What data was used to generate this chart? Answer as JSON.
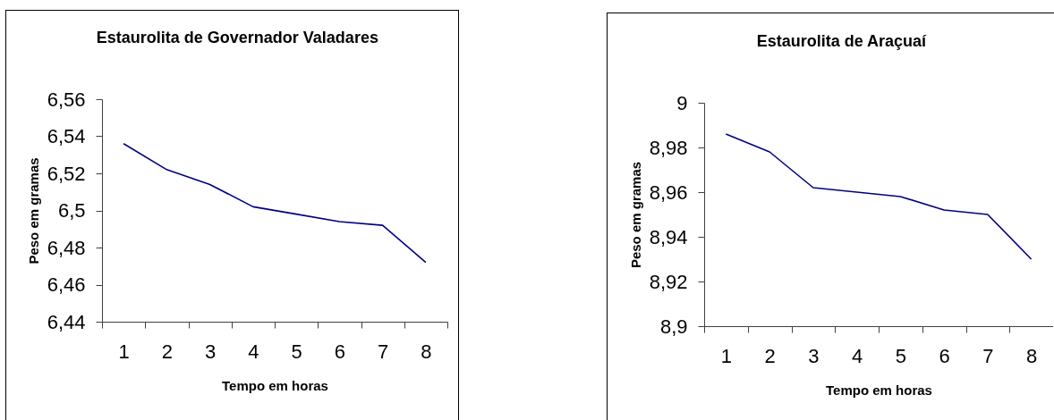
{
  "chart_data": [
    {
      "type": "line",
      "title": "Estaurolita de Governador Valadares",
      "xlabel": "Tempo em horas",
      "ylabel": "Peso em gramas",
      "categories": [
        "1",
        "2",
        "3",
        "4",
        "5",
        "6",
        "7",
        "8"
      ],
      "series": [
        {
          "color": "#000080",
          "values": [
            6.536,
            6.522,
            6.514,
            6.502,
            6.498,
            6.494,
            6.492,
            6.472
          ]
        }
      ],
      "ylim": [
        6.44,
        6.56
      ],
      "yticks": [
        {
          "value": 6.44,
          "label": "6,44"
        },
        {
          "value": 6.46,
          "label": "6,46"
        },
        {
          "value": 6.48,
          "label": "6,48"
        },
        {
          "value": 6.5,
          "label": "6,5"
        },
        {
          "value": 6.52,
          "label": "6,52"
        },
        {
          "value": 6.54,
          "label": "6,54"
        },
        {
          "value": 6.56,
          "label": "6,56"
        }
      ]
    },
    {
      "type": "line",
      "title": "Estaurolita de Araçuaí",
      "xlabel": "Tempo em horas",
      "ylabel": "Peso em gramas",
      "categories": [
        "1",
        "2",
        "3",
        "4",
        "5",
        "6",
        "7",
        "8"
      ],
      "series": [
        {
          "color": "#000080",
          "values": [
            8.986,
            8.978,
            8.962,
            8.96,
            8.958,
            8.952,
            8.95,
            8.93
          ]
        }
      ],
      "ylim": [
        8.9,
        9
      ],
      "yticks": [
        {
          "value": 8.9,
          "label": "8,9"
        },
        {
          "value": 8.92,
          "label": "8,92"
        },
        {
          "value": 8.94,
          "label": "8,94"
        },
        {
          "value": 8.96,
          "label": "8,96"
        },
        {
          "value": 8.98,
          "label": "8,98"
        },
        9
      ]
    }
  ]
}
